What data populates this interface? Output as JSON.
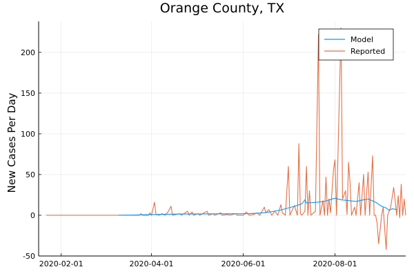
{
  "chart_data": {
    "type": "line",
    "title": "Orange County, TX",
    "xlabel": "",
    "ylabel": "New Cases Per Day",
    "x_axis": {
      "type": "date",
      "range": [
        "2020-01-17",
        "2020-09-17"
      ],
      "ticks": [
        "2020-02-01",
        "2020-04-01",
        "2020-06-01",
        "2020-08-01"
      ]
    },
    "y_axis": {
      "range": [
        -50,
        238
      ],
      "ticks": [
        -50,
        0,
        50,
        100,
        150,
        200
      ]
    },
    "grid": true,
    "legend_position": "top-right",
    "series": [
      {
        "name": "Model",
        "color": "#009af9",
        "points": [
          [
            "2020-03-10",
            0
          ],
          [
            "2020-03-20",
            0.3
          ],
          [
            "2020-03-30",
            0.8
          ],
          [
            "2020-04-10",
            1.2
          ],
          [
            "2020-04-20",
            1.5
          ],
          [
            "2020-04-30",
            1.6
          ],
          [
            "2020-05-10",
            1.7
          ],
          [
            "2020-05-20",
            1.8
          ],
          [
            "2020-05-30",
            1.8
          ],
          [
            "2020-06-05",
            2.0
          ],
          [
            "2020-06-15",
            3.0
          ],
          [
            "2020-06-25",
            6.0
          ],
          [
            "2020-07-01",
            9.0
          ],
          [
            "2020-07-05",
            11.0
          ],
          [
            "2020-07-10",
            14.0
          ],
          [
            "2020-07-12",
            19.0
          ],
          [
            "2020-07-13",
            15.0
          ],
          [
            "2020-07-20",
            16.0
          ],
          [
            "2020-07-25",
            17.0
          ],
          [
            "2020-08-01",
            21.0
          ],
          [
            "2020-08-05",
            19.0
          ],
          [
            "2020-08-10",
            18.0
          ],
          [
            "2020-08-15",
            17.0
          ],
          [
            "2020-08-20",
            19.0
          ],
          [
            "2020-08-23",
            20.0
          ],
          [
            "2020-08-28",
            16.0
          ],
          [
            "2020-09-01",
            11.0
          ],
          [
            "2020-09-04",
            9.0
          ],
          [
            "2020-09-06",
            6.0
          ],
          [
            "2020-09-08",
            8.0
          ],
          [
            "2020-09-11",
            7.0
          ]
        ]
      },
      {
        "name": "Reported",
        "color": "#e26f46",
        "points": [
          [
            "2020-01-22",
            0
          ],
          [
            "2020-03-24",
            0
          ],
          [
            "2020-03-25",
            2
          ],
          [
            "2020-03-26",
            0
          ],
          [
            "2020-03-30",
            0
          ],
          [
            "2020-03-31",
            3
          ],
          [
            "2020-04-01",
            0
          ],
          [
            "2020-04-03",
            16
          ],
          [
            "2020-04-04",
            1
          ],
          [
            "2020-04-06",
            0
          ],
          [
            "2020-04-08",
            2
          ],
          [
            "2020-04-10",
            0
          ],
          [
            "2020-04-12",
            4
          ],
          [
            "2020-04-14",
            11
          ],
          [
            "2020-04-15",
            0
          ],
          [
            "2020-04-20",
            2
          ],
          [
            "2020-04-21",
            0
          ],
          [
            "2020-04-25",
            5
          ],
          [
            "2020-04-26",
            0
          ],
          [
            "2020-04-28",
            4
          ],
          [
            "2020-04-29",
            0
          ],
          [
            "2020-05-02",
            2
          ],
          [
            "2020-05-03",
            0
          ],
          [
            "2020-05-08",
            5
          ],
          [
            "2020-05-09",
            0
          ],
          [
            "2020-05-12",
            2
          ],
          [
            "2020-05-13",
            0
          ],
          [
            "2020-05-17",
            3
          ],
          [
            "2020-05-18",
            0
          ],
          [
            "2020-05-22",
            1
          ],
          [
            "2020-05-23",
            0
          ],
          [
            "2020-05-27",
            2
          ],
          [
            "2020-05-28",
            0
          ],
          [
            "2020-06-01",
            0
          ],
          [
            "2020-06-03",
            4
          ],
          [
            "2020-06-05",
            0
          ],
          [
            "2020-06-08",
            1
          ],
          [
            "2020-06-10",
            3
          ],
          [
            "2020-06-12",
            0
          ],
          [
            "2020-06-15",
            10
          ],
          [
            "2020-06-16",
            3
          ],
          [
            "2020-06-18",
            7
          ],
          [
            "2020-06-20",
            0
          ],
          [
            "2020-06-22",
            5
          ],
          [
            "2020-06-24",
            0
          ],
          [
            "2020-06-26",
            13
          ],
          [
            "2020-06-27",
            3
          ],
          [
            "2020-06-29",
            0
          ],
          [
            "2020-07-01",
            60
          ],
          [
            "2020-07-02",
            0
          ],
          [
            "2020-07-05",
            12
          ],
          [
            "2020-07-07",
            0
          ],
          [
            "2020-07-08",
            88
          ],
          [
            "2020-07-09",
            2
          ],
          [
            "2020-07-10",
            0
          ],
          [
            "2020-07-12",
            5
          ],
          [
            "2020-07-13",
            60
          ],
          [
            "2020-07-14",
            0
          ],
          [
            "2020-07-15",
            30
          ],
          [
            "2020-07-16",
            0
          ],
          [
            "2020-07-19",
            5
          ],
          [
            "2020-07-21",
            222
          ],
          [
            "2020-07-22",
            0
          ],
          [
            "2020-07-24",
            18
          ],
          [
            "2020-07-25",
            0
          ],
          [
            "2020-07-26",
            47
          ],
          [
            "2020-07-27",
            0
          ],
          [
            "2020-07-28",
            20
          ],
          [
            "2020-07-29",
            3
          ],
          [
            "2020-07-31",
            56
          ],
          [
            "2020-08-01",
            68
          ],
          [
            "2020-08-02",
            0
          ],
          [
            "2020-08-05",
            230
          ],
          [
            "2020-08-06",
            20
          ],
          [
            "2020-08-08",
            30
          ],
          [
            "2020-08-09",
            1
          ],
          [
            "2020-08-10",
            65
          ],
          [
            "2020-08-11",
            40
          ],
          [
            "2020-08-12",
            0
          ],
          [
            "2020-08-14",
            10
          ],
          [
            "2020-08-15",
            0
          ],
          [
            "2020-08-17",
            40
          ],
          [
            "2020-08-18",
            0
          ],
          [
            "2020-08-20",
            50
          ],
          [
            "2020-08-21",
            0
          ],
          [
            "2020-08-23",
            53
          ],
          [
            "2020-08-24",
            0
          ],
          [
            "2020-08-26",
            73
          ],
          [
            "2020-08-27",
            0
          ],
          [
            "2020-08-28",
            0
          ],
          [
            "2020-08-29",
            -10
          ],
          [
            "2020-08-30",
            -35
          ],
          [
            "2020-09-01",
            0
          ],
          [
            "2020-09-02",
            10
          ],
          [
            "2020-09-04",
            -42
          ],
          [
            "2020-09-05",
            0
          ],
          [
            "2020-09-07",
            10
          ],
          [
            "2020-09-09",
            34
          ],
          [
            "2020-09-10",
            18
          ],
          [
            "2020-09-11",
            0
          ],
          [
            "2020-09-12",
            24
          ],
          [
            "2020-09-13",
            -3
          ],
          [
            "2020-09-14",
            38
          ],
          [
            "2020-09-15",
            0
          ],
          [
            "2020-09-16",
            20
          ],
          [
            "2020-09-17",
            0
          ]
        ]
      }
    ]
  }
}
